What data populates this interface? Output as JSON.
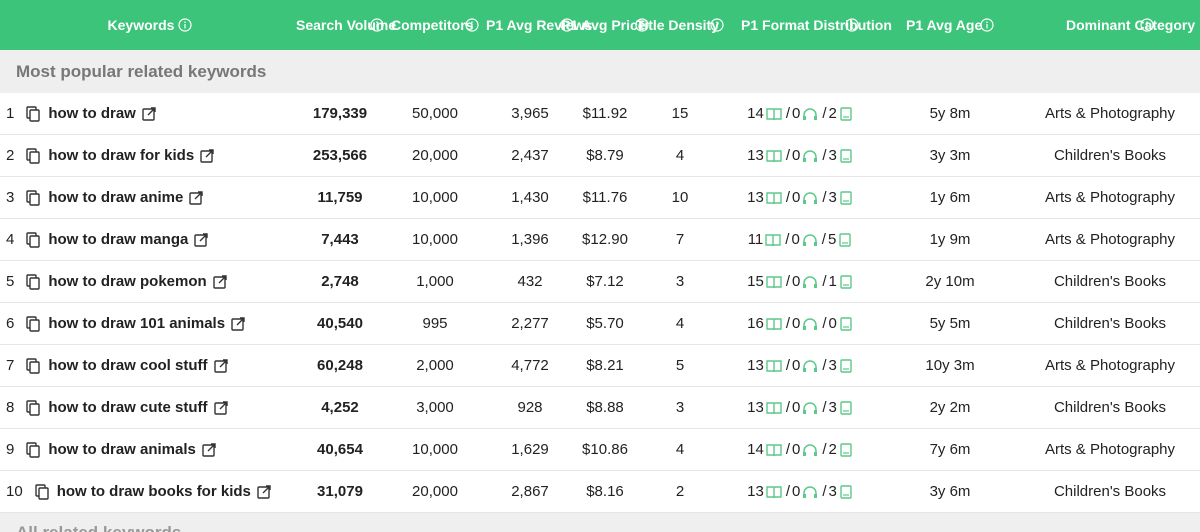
{
  "header": {
    "columns": [
      "Keywords",
      "Search Volume",
      "Competitors",
      "P1 Avg Reviews",
      "P1 Avg Price",
      "Title Density",
      "P1 Format Distribution",
      "P1 Avg Age",
      "Dominant Category"
    ]
  },
  "section": "Most popular related keywords",
  "rows": [
    {
      "rank": 1,
      "keyword": "how to draw",
      "search_volume": "179,339",
      "competitors": "50,000",
      "reviews": "3,965",
      "price": "$11.92",
      "density": 15,
      "format": [
        14,
        0,
        2
      ],
      "age": "5y 8m",
      "category": "Arts & Photography"
    },
    {
      "rank": 2,
      "keyword": "how to draw for kids",
      "search_volume": "253,566",
      "competitors": "20,000",
      "reviews": "2,437",
      "price": "$8.79",
      "density": 4,
      "format": [
        13,
        0,
        3
      ],
      "age": "3y 3m",
      "category": "Children's Books"
    },
    {
      "rank": 3,
      "keyword": "how to draw anime",
      "search_volume": "11,759",
      "competitors": "10,000",
      "reviews": "1,430",
      "price": "$11.76",
      "density": 10,
      "format": [
        13,
        0,
        3
      ],
      "age": "1y 6m",
      "category": "Arts & Photography"
    },
    {
      "rank": 4,
      "keyword": "how to draw manga",
      "search_volume": "7,443",
      "competitors": "10,000",
      "reviews": "1,396",
      "price": "$12.90",
      "density": 7,
      "format": [
        11,
        0,
        5
      ],
      "age": "1y 9m",
      "category": "Arts & Photography"
    },
    {
      "rank": 5,
      "keyword": "how to draw pokemon",
      "search_volume": "2,748",
      "competitors": "1,000",
      "reviews": "432",
      "price": "$7.12",
      "density": 3,
      "format": [
        15,
        0,
        1
      ],
      "age": "2y 10m",
      "category": "Children's Books"
    },
    {
      "rank": 6,
      "keyword": "how to draw 101 animals",
      "search_volume": "40,540",
      "competitors": "995",
      "reviews": "2,277",
      "price": "$5.70",
      "density": 4,
      "format": [
        16,
        0,
        0
      ],
      "age": "5y 5m",
      "category": "Children's Books"
    },
    {
      "rank": 7,
      "keyword": "how to draw cool stuff",
      "search_volume": "60,248",
      "competitors": "2,000",
      "reviews": "4,772",
      "price": "$8.21",
      "density": 5,
      "format": [
        13,
        0,
        3
      ],
      "age": "10y 3m",
      "category": "Arts & Photography"
    },
    {
      "rank": 8,
      "keyword": "how to draw cute stuff",
      "search_volume": "4,252",
      "competitors": "3,000",
      "reviews": "928",
      "price": "$8.88",
      "density": 3,
      "format": [
        13,
        0,
        3
      ],
      "age": "2y 2m",
      "category": "Children's Books"
    },
    {
      "rank": 9,
      "keyword": "how to draw animals",
      "search_volume": "40,654",
      "competitors": "10,000",
      "reviews": "1,629",
      "price": "$10.86",
      "density": 4,
      "format": [
        14,
        0,
        2
      ],
      "age": "7y 6m",
      "category": "Arts & Photography"
    },
    {
      "rank": 10,
      "keyword": "how to draw books for kids",
      "search_volume": "31,079",
      "competitors": "20,000",
      "reviews": "2,867",
      "price": "$8.16",
      "density": 2,
      "format": [
        13,
        0,
        3
      ],
      "age": "3y 6m",
      "category": "Children's Books"
    }
  ],
  "next_section": "All related keywords"
}
